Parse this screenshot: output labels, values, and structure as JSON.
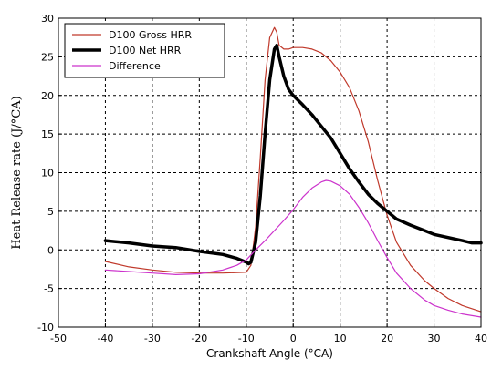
{
  "chart_data": {
    "type": "line",
    "title": "",
    "xlabel": "Crankshaft Angle  (°CA)",
    "ylabel": "Heat Release rate (J/°CA)",
    "xlim": [
      -50,
      40
    ],
    "ylim": [
      -10,
      30
    ],
    "xticks": [
      -50,
      -40,
      -30,
      -20,
      -10,
      0,
      10,
      20,
      30,
      40
    ],
    "yticks": [
      -10,
      -5,
      0,
      5,
      10,
      15,
      20,
      25,
      30
    ],
    "grid": true,
    "legend_position": "top-left",
    "series": [
      {
        "name": "D100 Gross HRR",
        "color": "#c0392b",
        "width": 1.2,
        "x": [
          -40,
          -35,
          -30,
          -25,
          -20,
          -15,
          -10,
          -9,
          -8,
          -7,
          -6,
          -5,
          -4,
          -3.5,
          -3,
          -2,
          -1,
          0,
          2,
          4,
          6,
          8,
          10,
          12,
          14,
          16,
          18,
          20,
          22,
          25,
          28,
          30,
          33,
          36,
          40
        ],
        "y": [
          -1.5,
          -2.2,
          -2.6,
          -2.9,
          -3.0,
          -3.0,
          -2.9,
          -2.0,
          3.0,
          12.0,
          22.0,
          27.5,
          28.8,
          28.2,
          26.5,
          26.0,
          26.0,
          26.2,
          26.2,
          26.0,
          25.5,
          24.5,
          23.0,
          21.0,
          18.0,
          14.0,
          9.0,
          4.5,
          1.0,
          -2.0,
          -4.0,
          -5.0,
          -6.3,
          -7.2,
          -8.0
        ]
      },
      {
        "name": "D100 Net HRR",
        "color": "#000000",
        "width": 3.5,
        "x": [
          -40,
          -35,
          -30,
          -25,
          -20,
          -15,
          -12,
          -10,
          -9.5,
          -9,
          -8,
          -7,
          -6,
          -5,
          -4,
          -3.5,
          -3,
          -2,
          -1,
          0,
          2,
          4,
          6,
          8,
          10,
          12,
          14,
          16,
          18,
          20,
          22,
          25,
          28,
          30,
          33,
          36,
          38,
          40
        ],
        "y": [
          1.2,
          0.9,
          0.5,
          0.3,
          -0.2,
          -0.6,
          -1.1,
          -1.6,
          -1.8,
          -1.6,
          1.0,
          7.0,
          15.0,
          22.0,
          26.0,
          26.5,
          25.0,
          22.5,
          20.8,
          20.0,
          18.8,
          17.5,
          16.0,
          14.5,
          12.5,
          10.5,
          8.8,
          7.2,
          6.0,
          5.0,
          4.0,
          3.2,
          2.5,
          2.0,
          1.6,
          1.2,
          0.9,
          0.9
        ]
      },
      {
        "name": "Difference",
        "color": "#cc33cc",
        "width": 1.2,
        "x": [
          -40,
          -35,
          -30,
          -25,
          -20,
          -15,
          -12,
          -10,
          -8,
          -6,
          -4,
          -2,
          0,
          2,
          4,
          6,
          7,
          8,
          10,
          12,
          14,
          16,
          18,
          20,
          22,
          25,
          28,
          30,
          33,
          36,
          40
        ],
        "y": [
          -2.6,
          -2.8,
          -3.0,
          -3.2,
          -3.1,
          -2.6,
          -2.0,
          -1.3,
          0.0,
          1.2,
          2.5,
          3.8,
          5.2,
          6.8,
          8.0,
          8.8,
          9.0,
          8.9,
          8.3,
          7.2,
          5.5,
          3.5,
          1.2,
          -1.0,
          -3.0,
          -5.0,
          -6.5,
          -7.2,
          -7.8,
          -8.3,
          -8.7
        ]
      }
    ]
  }
}
